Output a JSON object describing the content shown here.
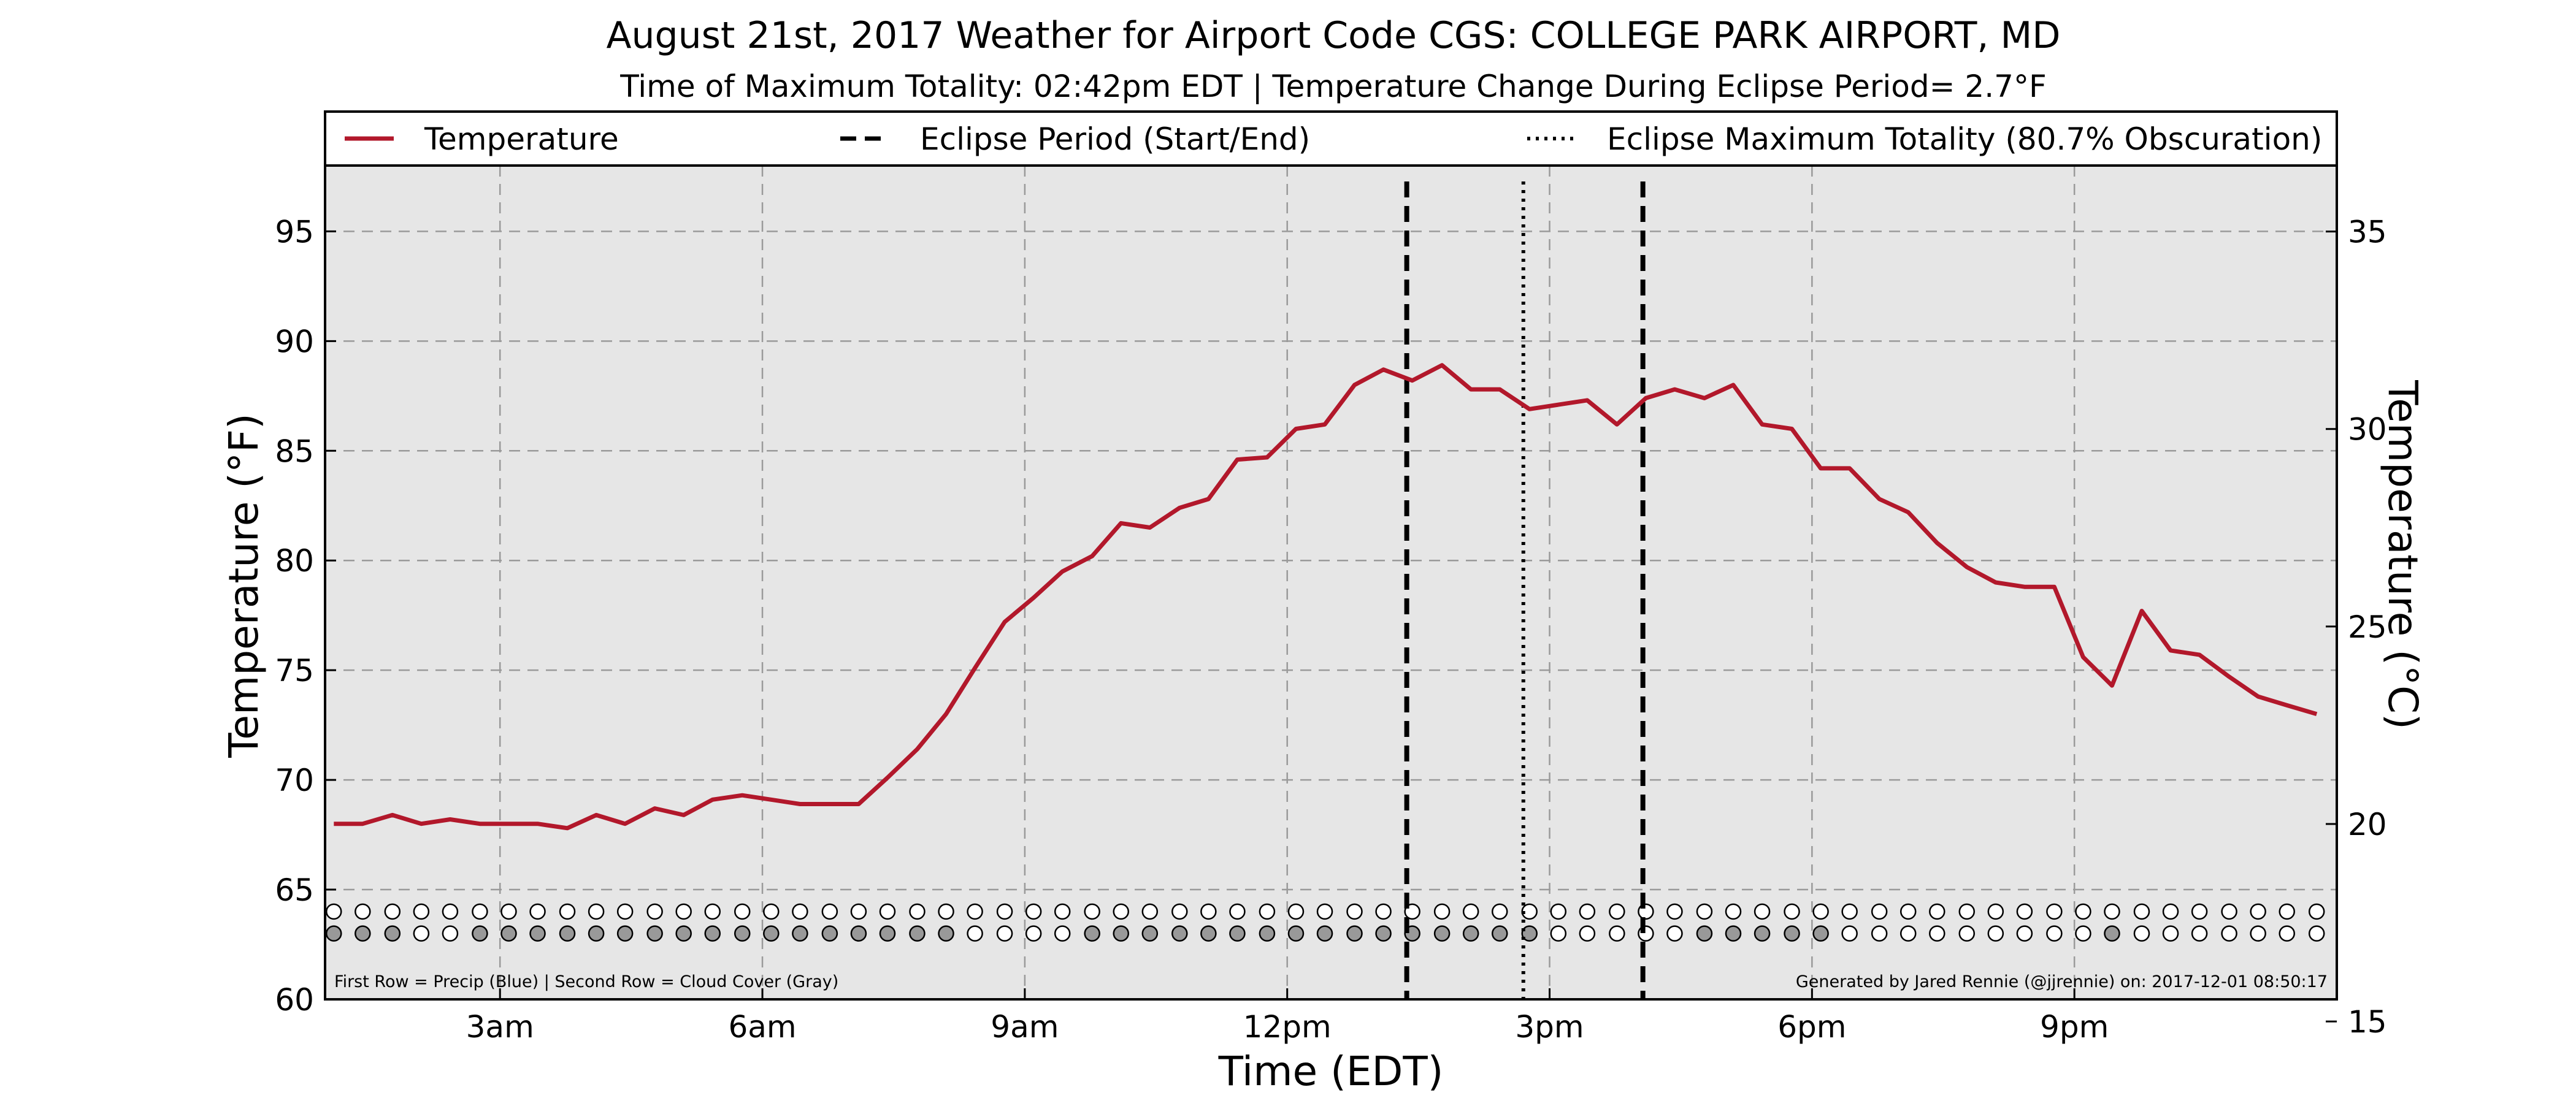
{
  "chart_data": {
    "type": "line",
    "title": "August 21st, 2017 Weather for Airport Code CGS: COLLEGE PARK AIRPORT, MD",
    "subtitle": "Time of Maximum Totality: 02:42pm EDT | Temperature Change During Eclipse Period= 2.7°F",
    "xlabel": "Time (EDT)",
    "ylabel": "Temperature (°F)",
    "ylabel_right": "Temperature (°C)",
    "x_unit": "hours since midnight EDT",
    "xlim": [
      1.0,
      24.0
    ],
    "ylim": [
      60,
      98
    ],
    "ylim_right": [
      15.56,
      36.67
    ],
    "x_ticks": [
      {
        "value": 3,
        "label": "3am"
      },
      {
        "value": 6,
        "label": "6am"
      },
      {
        "value": 9,
        "label": "9am"
      },
      {
        "value": 12,
        "label": "12pm"
      },
      {
        "value": 15,
        "label": "3pm"
      },
      {
        "value": 18,
        "label": "6pm"
      },
      {
        "value": 21,
        "label": "9pm"
      }
    ],
    "y_ticks": [
      {
        "value": 60,
        "label": "60"
      },
      {
        "value": 65,
        "label": "65"
      },
      {
        "value": 70,
        "label": "70"
      },
      {
        "value": 75,
        "label": "75"
      },
      {
        "value": 80,
        "label": "80"
      },
      {
        "value": 85,
        "label": "85"
      },
      {
        "value": 90,
        "label": "90"
      },
      {
        "value": 95,
        "label": "95"
      }
    ],
    "y_ticks_right": [
      {
        "value": 15,
        "label": "15"
      },
      {
        "value": 20,
        "label": "20"
      },
      {
        "value": 25,
        "label": "25"
      },
      {
        "value": 30,
        "label": "30"
      },
      {
        "value": 35,
        "label": "35"
      }
    ],
    "grid": true,
    "background_color": "#e6e6e6",
    "series": [
      {
        "name": "Temperature",
        "color": "#b2182b",
        "x": [
          1.1,
          1.43,
          1.77,
          2.1,
          2.43,
          2.77,
          3.1,
          3.43,
          3.77,
          4.1,
          4.43,
          4.77,
          5.1,
          5.43,
          5.77,
          6.1,
          6.43,
          6.77,
          7.1,
          7.43,
          7.77,
          8.1,
          8.43,
          8.77,
          9.1,
          9.43,
          9.77,
          10.1,
          10.43,
          10.77,
          11.1,
          11.43,
          11.77,
          12.1,
          12.43,
          12.77,
          13.1,
          13.43,
          13.77,
          14.1,
          14.43,
          14.77,
          15.1,
          15.43,
          15.77,
          16.1,
          16.43,
          16.77,
          17.1,
          17.43,
          17.77,
          18.1,
          18.43,
          18.77,
          19.1,
          19.43,
          19.77,
          20.1,
          20.43,
          20.77,
          21.1,
          21.43,
          21.77,
          22.1,
          22.43,
          22.77,
          23.1,
          23.43,
          23.77
        ],
        "values": [
          68.0,
          68.0,
          68.4,
          68.0,
          68.2,
          68.0,
          68.0,
          68.0,
          67.8,
          68.4,
          68.0,
          68.7,
          68.4,
          69.1,
          69.3,
          69.1,
          68.9,
          68.9,
          68.9,
          70.1,
          71.4,
          73.0,
          75.1,
          77.2,
          78.3,
          79.5,
          80.2,
          81.7,
          81.5,
          82.4,
          82.8,
          84.6,
          84.7,
          86.0,
          86.2,
          88.0,
          88.7,
          88.2,
          88.9,
          87.8,
          87.8,
          86.9,
          87.1,
          87.3,
          86.2,
          87.4,
          87.8,
          87.4,
          88.0,
          86.2,
          86.0,
          84.2,
          84.2,
          82.8,
          82.2,
          80.8,
          79.7,
          79.0,
          78.8,
          78.8,
          75.6,
          74.3,
          77.7,
          75.9,
          75.7,
          74.7,
          73.8,
          73.4,
          73.0
        ]
      }
    ],
    "vertical_lines": [
      {
        "name": "Eclipse Period (Start/End)",
        "style": "dashed",
        "x": 13.3667
      },
      {
        "name": "Eclipse Maximum Totality (80.7% Obscuration)",
        "style": "dotted",
        "x": 14.7
      },
      {
        "name": "Eclipse Period (Start/End)",
        "style": "dashed",
        "x": 16.0667
      }
    ],
    "legend": {
      "placement": "top-outside",
      "entries": [
        {
          "label": "Temperature",
          "style": "line",
          "color": "#b2182b"
        },
        {
          "label": "Eclipse Period (Start/End)",
          "style": "dashed",
          "color": "#000000"
        },
        {
          "label": "Eclipse Maximum Totality (80.7% Obscuration)",
          "style": "dotted",
          "color": "#000000"
        }
      ]
    },
    "indicator_rows": {
      "precip_row_value": 64.0,
      "cloud_row_value": 63.0,
      "precip_empty_color": "#ffffff",
      "cloud_filled_color": "#999999",
      "cloud_empty_color": "#ffffff",
      "precip_filled": [
        0,
        0,
        0,
        0,
        0,
        0,
        0,
        0,
        0,
        0,
        0,
        0,
        0,
        0,
        0,
        0,
        0,
        0,
        0,
        0,
        0,
        0,
        0,
        0,
        0,
        0,
        0,
        0,
        0,
        0,
        0,
        0,
        0,
        0,
        0,
        0,
        0,
        0,
        0,
        0,
        0,
        0,
        0,
        0,
        0,
        0,
        0,
        0,
        0,
        0,
        0,
        0,
        0,
        0,
        0,
        0,
        0,
        0,
        0,
        0,
        0,
        0,
        0,
        0,
        0,
        0,
        0,
        0,
        0
      ],
      "cloud_filled": [
        1,
        1,
        1,
        0,
        0,
        1,
        1,
        1,
        1,
        1,
        1,
        1,
        1,
        1,
        1,
        1,
        1,
        1,
        1,
        1,
        1,
        1,
        0,
        0,
        0,
        0,
        1,
        1,
        1,
        1,
        1,
        1,
        1,
        1,
        1,
        1,
        1,
        1,
        1,
        1,
        1,
        1,
        0,
        0,
        0,
        0,
        0,
        1,
        1,
        1,
        1,
        1,
        0,
        0,
        0,
        0,
        0,
        0,
        0,
        0,
        0,
        1,
        0,
        0,
        0,
        0,
        0,
        0,
        0
      ]
    },
    "footnote_left": "First Row = Precip (Blue) | Second Row = Cloud Cover (Gray)",
    "footnote_right": "Generated by Jared Rennie (@jjrennie) on: 2017-12-01 08:50:17"
  }
}
